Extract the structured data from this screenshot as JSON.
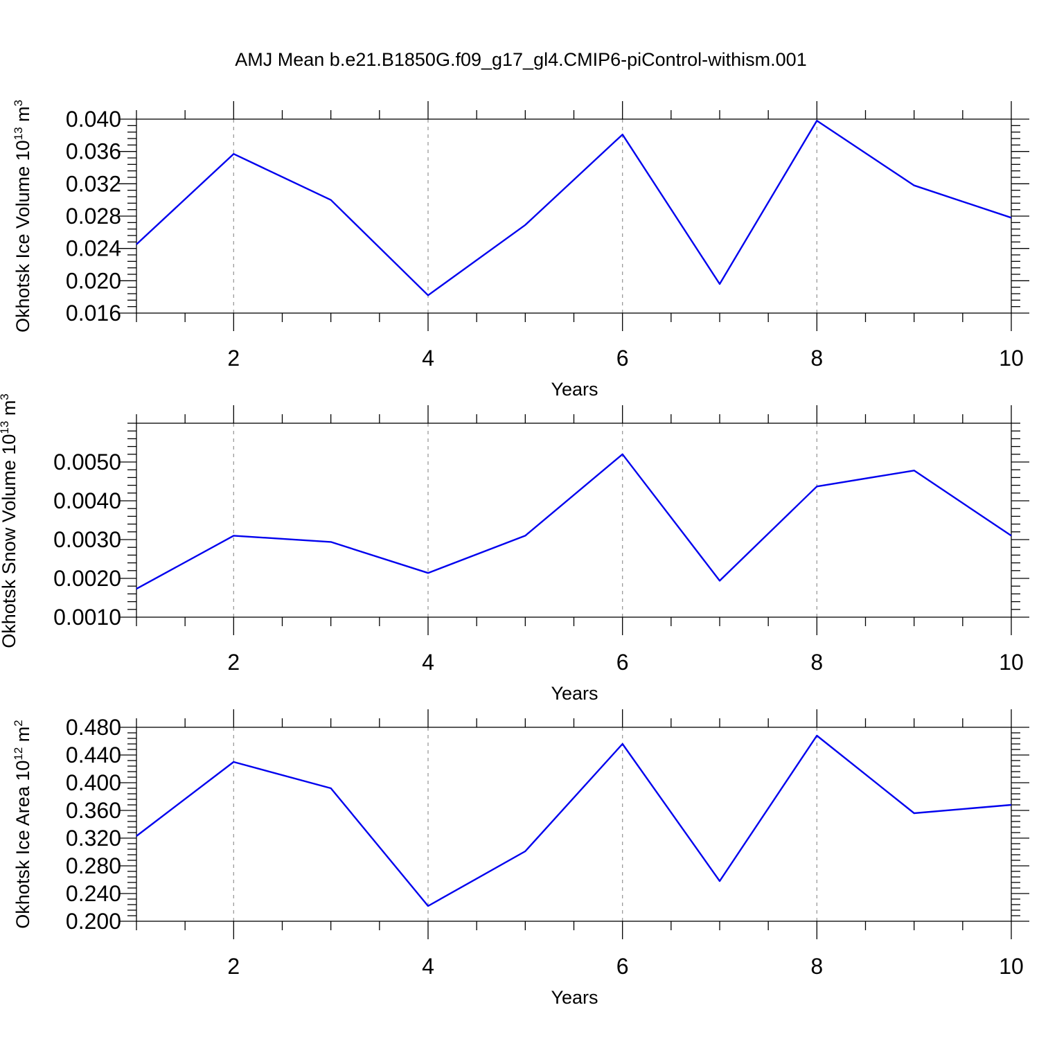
{
  "title": "AMJ Mean b.e21.B1850G.f09_g17_gl4.CMIP6-piControl-withism.001",
  "colors": {
    "line": "#0000ee",
    "grid": "#9a9a9a",
    "axis": "#000000"
  },
  "chart_data": [
    {
      "type": "line",
      "xlabel": "Years",
      "ylabel": {
        "prefix": "Okhotsk Ice Volume 10",
        "exp": "13",
        "unit": " m",
        "unit_exp": "3"
      },
      "xlim": [
        1,
        10
      ],
      "ylim": [
        0.016,
        0.04
      ],
      "x_ticks": [
        2,
        4,
        6,
        8,
        10
      ],
      "x_tick_labels": [
        "2",
        "4",
        "6",
        "8",
        "10"
      ],
      "y_ticks": [
        0.016,
        0.02,
        0.024,
        0.028,
        0.032,
        0.036,
        0.04
      ],
      "y_tick_labels": [
        "0.016",
        "0.020",
        "0.024",
        "0.028",
        "0.032",
        "0.036",
        "0.040"
      ],
      "grid": "vertical-dashed",
      "x": [
        1,
        2,
        3,
        4,
        5,
        6,
        7,
        8,
        9,
        10
      ],
      "values": [
        0.0245,
        0.0357,
        0.03,
        0.0182,
        0.0269,
        0.0381,
        0.0196,
        0.0398,
        0.0318,
        0.0278
      ]
    },
    {
      "type": "line",
      "xlabel": "Years",
      "ylabel": {
        "prefix": "Okhotsk Snow Volume 10",
        "exp": "13",
        "unit": " m",
        "unit_exp": "3"
      },
      "xlim": [
        1,
        10
      ],
      "ylim": [
        0.001,
        0.006
      ],
      "x_ticks": [
        2,
        4,
        6,
        8,
        10
      ],
      "x_tick_labels": [
        "2",
        "4",
        "6",
        "8",
        "10"
      ],
      "y_ticks": [
        0.001,
        0.002,
        0.003,
        0.004,
        0.005
      ],
      "y_tick_labels": [
        "0.0010",
        "0.0020",
        "0.0030",
        "0.0040",
        "0.0050"
      ],
      "grid": "vertical-dashed",
      "x": [
        1,
        2,
        3,
        4,
        5,
        6,
        7,
        8,
        9,
        10
      ],
      "values": [
        0.00173,
        0.0031,
        0.00294,
        0.00214,
        0.0031,
        0.0052,
        0.00194,
        0.00437,
        0.00478,
        0.0031
      ]
    },
    {
      "type": "line",
      "xlabel": "Years",
      "ylabel": {
        "prefix": "Okhotsk Ice Area 10",
        "exp": "12",
        "unit": " m",
        "unit_exp": "2"
      },
      "xlim": [
        1,
        10
      ],
      "ylim": [
        0.2,
        0.48
      ],
      "x_ticks": [
        2,
        4,
        6,
        8,
        10
      ],
      "x_tick_labels": [
        "2",
        "4",
        "6",
        "8",
        "10"
      ],
      "y_ticks": [
        0.2,
        0.24,
        0.28,
        0.32,
        0.36,
        0.4,
        0.44,
        0.48
      ],
      "y_tick_labels": [
        "0.200",
        "0.240",
        "0.280",
        "0.320",
        "0.360",
        "0.400",
        "0.440",
        "0.480"
      ],
      "grid": "vertical-dashed",
      "x": [
        1,
        2,
        3,
        4,
        5,
        6,
        7,
        8,
        9,
        10
      ],
      "values": [
        0.323,
        0.43,
        0.392,
        0.222,
        0.301,
        0.456,
        0.258,
        0.468,
        0.356,
        0.368
      ]
    }
  ]
}
